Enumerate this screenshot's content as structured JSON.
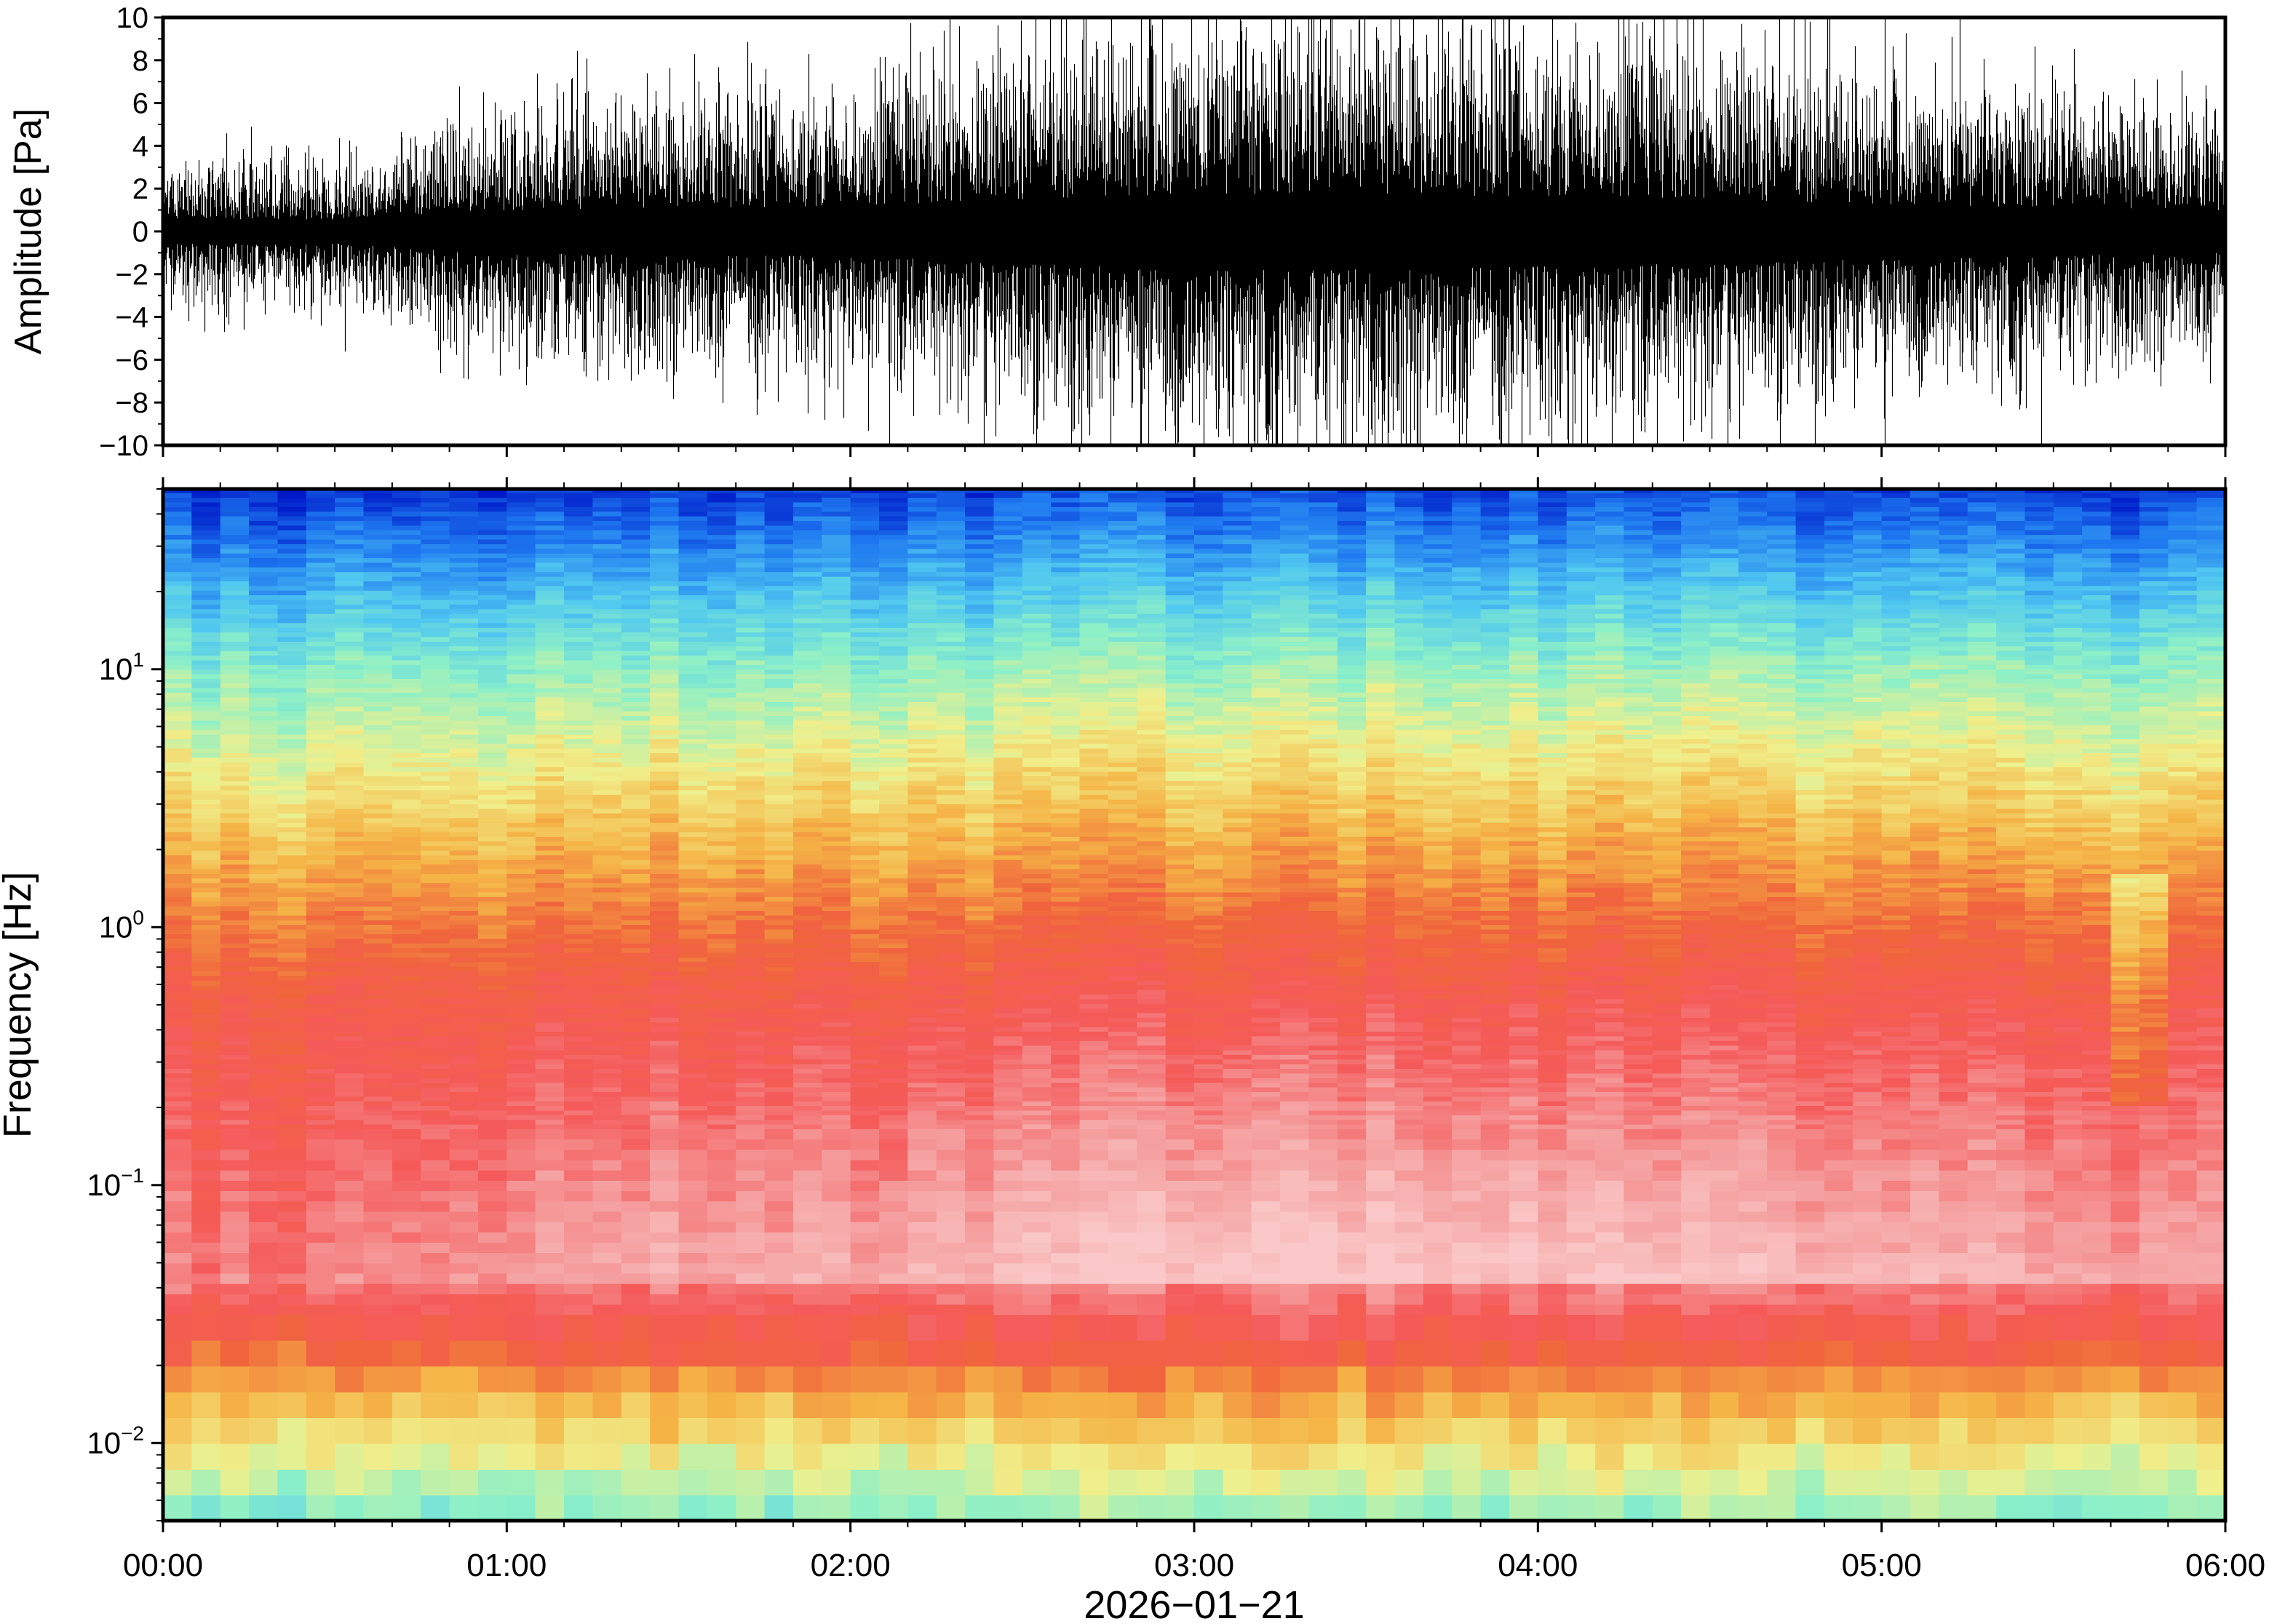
{
  "chart_data": [
    {
      "type": "line",
      "ylabel": "Amplitude [Pa]",
      "ylim": [
        -10,
        10
      ],
      "yticks": [
        -10,
        -8,
        -6,
        -4,
        -2,
        0,
        2,
        4,
        6,
        8,
        10
      ],
      "yticklabels": [
        "−10",
        "−8",
        "−6",
        "−4",
        "−2",
        "0",
        "2",
        "4",
        "6",
        "8",
        "10"
      ],
      "xlim": [
        "00:00",
        "06:00"
      ],
      "envelope": {
        "x": [
          "00:00",
          "00:30",
          "01:00",
          "01:30",
          "02:00",
          "02:30",
          "03:00",
          "03:30",
          "04:00",
          "04:30",
          "05:00",
          "05:30",
          "06:00"
        ],
        "amplitude": [
          1.6,
          1.6,
          2.8,
          3.2,
          3.2,
          4.2,
          5.0,
          5.0,
          4.6,
          4.2,
          3.6,
          3.2,
          2.8
        ]
      },
      "grid": false,
      "color": "#000000"
    },
    {
      "type": "heatmap",
      "ylabel": "Frequency [Hz]",
      "yscale": "log",
      "ylim": [
        0.005,
        50
      ],
      "yticks": [
        0.01,
        0.1,
        1,
        10
      ],
      "yticklabels": [
        {
          "base": "10",
          "exp": "−2"
        },
        {
          "base": "10",
          "exp": "−1"
        },
        {
          "base": "10",
          "exp": "0"
        },
        {
          "base": "10",
          "exp": "1"
        }
      ],
      "xlim": [
        "00:00",
        "06:00"
      ],
      "xticklabels": [
        "00:00",
        "01:00",
        "02:00",
        "03:00",
        "04:00",
        "05:00",
        "06:00"
      ],
      "xlabel": "2026−01−21",
      "colormap": [
        "#0019c8",
        "#1e78f0",
        "#50c8f0",
        "#8cf0c8",
        "#f0f08c",
        "#f5b446",
        "#f0643c",
        "#f55a5a",
        "#f5a0a0",
        "#fac8c8"
      ],
      "grid": false
    }
  ]
}
